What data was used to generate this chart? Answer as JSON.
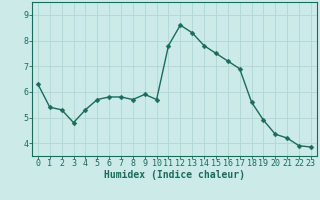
{
  "x": [
    0,
    1,
    2,
    3,
    4,
    5,
    6,
    7,
    8,
    9,
    10,
    11,
    12,
    13,
    14,
    15,
    16,
    17,
    18,
    19,
    20,
    21,
    22,
    23
  ],
  "y": [
    6.3,
    5.4,
    5.3,
    4.8,
    5.3,
    5.7,
    5.8,
    5.8,
    5.7,
    5.9,
    5.7,
    7.8,
    8.6,
    8.3,
    7.8,
    7.5,
    7.2,
    6.9,
    5.6,
    4.9,
    4.35,
    4.2,
    3.9,
    3.85
  ],
  "line_color": "#1a6b5e",
  "marker": "D",
  "markersize": 2.5,
  "linewidth": 1.0,
  "bg_color": "#cceae7",
  "grid_color": "#b0d8d4",
  "axis_color": "#1a6b5e",
  "xlabel": "Humidex (Indice chaleur)",
  "xlabel_fontsize": 7,
  "xlabel_color": "#1a6b5e",
  "yticks": [
    4,
    5,
    6,
    7,
    8,
    9
  ],
  "xticks": [
    0,
    1,
    2,
    3,
    4,
    5,
    6,
    7,
    8,
    9,
    10,
    11,
    12,
    13,
    14,
    15,
    16,
    17,
    18,
    19,
    20,
    21,
    22,
    23
  ],
  "ylim": [
    3.5,
    9.5
  ],
  "xlim": [
    -0.5,
    23.5
  ],
  "tick_fontsize": 6.0
}
